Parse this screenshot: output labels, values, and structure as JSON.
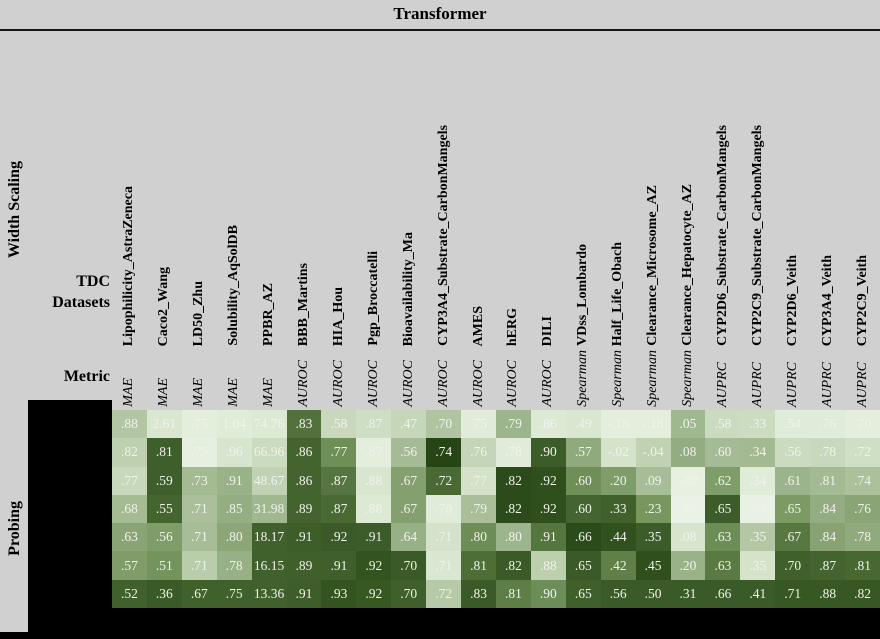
{
  "title": "Transformer",
  "corner": {
    "line1": "TDC",
    "line2": "Datasets",
    "metric": "Metric"
  },
  "side_labels": {
    "columns_block": "Width Scaling",
    "rows_block": "Probing"
  },
  "colors": {
    "page_background": "#d0d0d0",
    "rule": "#141414",
    "redaction": "#000000",
    "cell_text": "#f0f2ec"
  },
  "chart_data": {
    "type": "heatmap",
    "title": "Transformer",
    "col_block_label": "Width Scaling",
    "row_block_label": "Probing",
    "columns": [
      "Lipophilicity_AstraZeneca",
      "Caco2_Wang",
      "LD50_Zhu",
      "Solubility_AqSolDB",
      "PPBR_AZ",
      "BBB_Martins",
      "HIA_Hou",
      "Pgp_Broccatelli",
      "Bioavailability_Ma",
      "CYP3A4_Substrate_CarbonMangels",
      "AMES",
      "hERG",
      "DILI",
      "VDss_Lombardo",
      "Half_Life_Obach",
      "Clearance_Microsome_AZ",
      "Clearance_Hepatocyte_AZ",
      "CYP2D6_Substrate_CarbonMangels",
      "CYP2C9_Substrate_CarbonMangels",
      "CYP2D6_Veith",
      "CYP3A4_Veith",
      "CYP2C9_Veith"
    ],
    "metrics": [
      "MAE",
      "MAE",
      "MAE",
      "MAE",
      "MAE",
      "AUROC",
      "AUROC",
      "AUROC",
      "AUROC",
      "AUROC",
      "AUROC",
      "AUROC",
      "AUROC",
      "Spearman",
      "Spearman",
      "Spearman",
      "Spearman",
      "AUPRC",
      "AUPRC",
      "AUPRC",
      "AUPRC",
      "AUPRC"
    ],
    "rows": [
      {
        "values": [
          ".88",
          "2.61",
          ".75",
          "1.04",
          "74.76",
          ".83",
          ".58",
          ".87",
          ".47",
          ".70",
          ".75",
          ".79",
          ".86",
          ".49",
          "-.18",
          "-.18",
          ".05",
          ".58",
          ".33",
          ".54",
          ".76",
          ".70"
        ],
        "colors": [
          "#b2c6a4",
          "#d9e7d1",
          "#e3eedd",
          "#dfecd8",
          "#dcead5",
          "#52713c",
          "#c9d8bd",
          "#cedec4",
          "#c6d6b9",
          "#b0c4a1",
          "#e0ecd9",
          "#9db58c",
          "#dcead5",
          "#d9e7d1",
          "#e4eedd",
          "#e4eedd",
          "#a0b88f",
          "#cbdbc0",
          "#ccdcc1",
          "#e0ecda",
          "#e0ecda",
          "#e4eedd"
        ]
      },
      {
        "values": [
          ".82",
          ".81",
          ".75",
          ".96",
          "66.96",
          ".86",
          ".77",
          ".87",
          ".56",
          ".74",
          ".76",
          ".78",
          ".90",
          ".57",
          "-.02",
          "-.04",
          ".08",
          ".60",
          ".34",
          ".56",
          ".78",
          ".72"
        ],
        "colors": [
          "#bed0b0",
          "#3e5e2b",
          "#e6f0e0",
          "#d7e5cf",
          "#cbdbc0",
          "#44642f",
          "#6f8f58",
          "#e3eedd",
          "#a5bb95",
          "#264515",
          "#c4d5b8",
          "#e0ecd9",
          "#3c5c29",
          "#90a97d",
          "#d5e3cb",
          "#c0d2b2",
          "#93ac81",
          "#a5bb95",
          "#a2b991",
          "#cbdbc0",
          "#c8d8bc",
          "#cfdfc5"
        ]
      },
      {
        "values": [
          ".77",
          ".59",
          ".73",
          ".91",
          "48.67",
          ".86",
          ".87",
          ".88",
          ".67",
          ".72",
          ".77",
          ".82",
          ".92",
          ".60",
          ".20",
          ".09",
          "-.02",
          ".62",
          ".34",
          ".61",
          ".81",
          ".74"
        ],
        "colors": [
          "#c8d8bc",
          "#3e5e2b",
          "#a3ba92",
          "#9ab288",
          "#c0d2b3",
          "#44642f",
          "#567641",
          "#d8e6cf",
          "#84a06e",
          "#4a6a35",
          "#d4e2ca",
          "#2c4b1b",
          "#2f4f1d",
          "#6f8f58",
          "#7e9d68",
          "#a7bd97",
          "#e7f1e2",
          "#7e9d68",
          "#dfecd8",
          "#9cb48b",
          "#a3ba92",
          "#abc09b"
        ]
      },
      {
        "values": [
          ".68",
          ".55",
          ".71",
          ".85",
          "31.98",
          ".89",
          ".87",
          ".88",
          ".67",
          ".70",
          ".79",
          ".82",
          ".92",
          ".60",
          ".33",
          ".23",
          "-.02",
          ".65",
          ".33",
          ".65",
          ".84",
          ".76"
        ],
        "colors": [
          "#a4bb94",
          "#456530",
          "#aabf9a",
          "#94ad82",
          "#a0b88f",
          "#44642f",
          "#4a6a34",
          "#dcead4",
          "#84a06e",
          "#e0ecda",
          "#a9be99",
          "#2c4b1b",
          "#2f4f1d",
          "#446430",
          "#40602c",
          "#78975f",
          "#eaf2e5",
          "#3c5c29",
          "#e8f1e3",
          "#7b9a64",
          "#93ac81",
          "#8aa475"
        ]
      },
      {
        "values": [
          ".63",
          ".56",
          ".71",
          ".80",
          "18.17",
          ".91",
          ".92",
          ".91",
          ".64",
          ".71",
          ".80",
          ".80",
          ".91",
          ".66",
          ".44",
          ".35",
          ".08",
          ".63",
          ".35",
          ".67",
          ".84",
          ".78"
        ],
        "colors": [
          "#8ba475",
          "#7e9d68",
          "#a7bd97",
          "#8da677",
          "#40602c",
          "#3d5d29",
          "#3a5a27",
          "#3c5c29",
          "#97b085",
          "#d4e2cb",
          "#6d8d56",
          "#9db58c",
          "#567640",
          "#2c4b1b",
          "#31511e",
          "#3c5c29",
          "#d7e5cf",
          "#6d8d56",
          "#b3c7a4",
          "#587841",
          "#88a273",
          "#90a97d"
        ]
      },
      {
        "values": [
          ".57",
          ".51",
          ".71",
          ".78",
          "16.15",
          ".89",
          ".91",
          ".92",
          ".70",
          ".71",
          ".81",
          ".82",
          ".88",
          ".65",
          ".42",
          ".45",
          ".20",
          ".63",
          ".35",
          ".70",
          ".87",
          ".81"
        ],
        "colors": [
          "#7f9c69",
          "#74945d",
          "#b9cdaa",
          "#97b085",
          "#40602c",
          "#3f5f2b",
          "#3f5f2b",
          "#33531f",
          "#3a5a27",
          "#d9e6d1",
          "#4d6e37",
          "#3a5a27",
          "#bdd0ae",
          "#3a5a27",
          "#60804a",
          "#2f4f1d",
          "#9ab288",
          "#5a7a43",
          "#d5e3cb",
          "#3f5f2b",
          "#44642f",
          "#486831"
        ]
      },
      {
        "values": [
          ".52",
          ".36",
          ".67",
          ".75",
          "13.36",
          ".91",
          ".93",
          ".92",
          ".70",
          ".72",
          ".83",
          ".81",
          ".90",
          ".65",
          ".56",
          ".50",
          ".31",
          ".66",
          ".41",
          ".71",
          ".88",
          ".82"
        ],
        "colors": [
          "#40602c",
          "#3a5a27",
          "#40602c",
          "#40602c",
          "#40602c",
          "#3d5d29",
          "#33531f",
          "#375723",
          "#3f5f2b",
          "#b6caa7",
          "#3a5a27",
          "#5e7e48",
          "#6d8d58",
          "#3f5f2b",
          "#3a5a27",
          "#3a5a27",
          "#3a5a27",
          "#3a5a27",
          "#3a5a27",
          "#375723",
          "#375723",
          "#375723"
        ]
      }
    ]
  }
}
